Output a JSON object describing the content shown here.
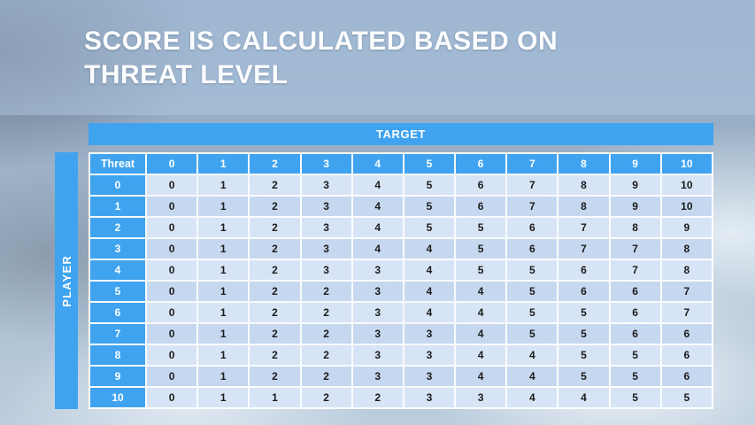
{
  "title": {
    "line1": "SCORE IS CALCULATED BASED ON",
    "line2": "THREAT LEVEL"
  },
  "matrix": {
    "target_label": "TARGET",
    "player_label": "PLAYER",
    "corner_label": "Threat",
    "column_headers": [
      "0",
      "1",
      "2",
      "3",
      "4",
      "5",
      "6",
      "7",
      "8",
      "9",
      "10"
    ],
    "rows": [
      {
        "label": "0",
        "values": [
          "0",
          "1",
          "2",
          "3",
          "4",
          "5",
          "6",
          "7",
          "8",
          "9",
          "10"
        ]
      },
      {
        "label": "1",
        "values": [
          "0",
          "1",
          "2",
          "3",
          "4",
          "5",
          "6",
          "7",
          "8",
          "9",
          "10"
        ]
      },
      {
        "label": "2",
        "values": [
          "0",
          "1",
          "2",
          "3",
          "4",
          "5",
          "5",
          "6",
          "7",
          "8",
          "9"
        ]
      },
      {
        "label": "3",
        "values": [
          "0",
          "1",
          "2",
          "3",
          "4",
          "4",
          "5",
          "6",
          "7",
          "7",
          "8"
        ]
      },
      {
        "label": "4",
        "values": [
          "0",
          "1",
          "2",
          "3",
          "3",
          "4",
          "5",
          "5",
          "6",
          "7",
          "8"
        ]
      },
      {
        "label": "5",
        "values": [
          "0",
          "1",
          "2",
          "2",
          "3",
          "4",
          "4",
          "5",
          "6",
          "6",
          "7"
        ]
      },
      {
        "label": "6",
        "values": [
          "0",
          "1",
          "2",
          "2",
          "3",
          "4",
          "4",
          "5",
          "5",
          "6",
          "7"
        ]
      },
      {
        "label": "7",
        "values": [
          "0",
          "1",
          "2",
          "2",
          "3",
          "3",
          "4",
          "5",
          "5",
          "6",
          "6"
        ]
      },
      {
        "label": "8",
        "values": [
          "0",
          "1",
          "2",
          "2",
          "3",
          "3",
          "4",
          "4",
          "5",
          "5",
          "6"
        ]
      },
      {
        "label": "9",
        "values": [
          "0",
          "1",
          "2",
          "2",
          "3",
          "3",
          "4",
          "4",
          "5",
          "5",
          "6"
        ]
      },
      {
        "label": "10",
        "values": [
          "0",
          "1",
          "1",
          "2",
          "2",
          "3",
          "3",
          "4",
          "4",
          "5",
          "5"
        ]
      }
    ]
  },
  "colors": {
    "header_blue": "#3FA3F0",
    "row_light": "#D7E4F6",
    "row_dark": "#C6D8F0",
    "cell_text": "#1B1B1B"
  }
}
